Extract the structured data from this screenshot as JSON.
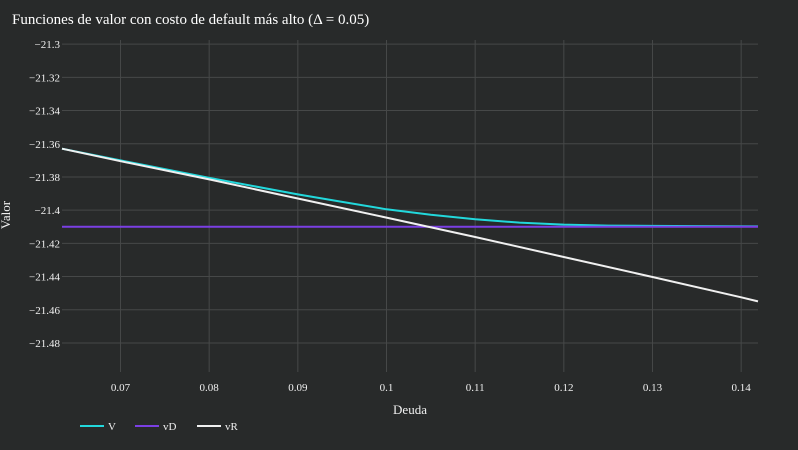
{
  "chart_data": {
    "type": "line",
    "title": "Funciones de valor con costo de default más alto (Δ = 0.05)",
    "xlabel": "Deuda",
    "ylabel": "Valor",
    "xlim": [
      0.0634,
      0.1419
    ],
    "ylim": [
      -21.4975,
      -21.2975
    ],
    "x_ticks": [
      0.07,
      0.08,
      0.09,
      0.1,
      0.11,
      0.12,
      0.13,
      0.14
    ],
    "x_tick_labels": [
      "0.07",
      "0.08",
      "0.09",
      "0.1",
      "0.11",
      "0.12",
      "0.13",
      "0.14"
    ],
    "y_ticks": [
      -21.3,
      -21.32,
      -21.34,
      -21.36,
      -21.38,
      -21.4,
      -21.42,
      -21.44,
      -21.46,
      -21.48
    ],
    "y_tick_labels": [
      "−21.3",
      "−21.32",
      "−21.34",
      "−21.36",
      "−21.38",
      "−21.4",
      "−21.42",
      "−21.44",
      "−21.46",
      "−21.48"
    ],
    "grid": true,
    "legend_position": "bottom-left",
    "background": "#282a2a",
    "grid_color": "#464848",
    "series": [
      {
        "name": "V",
        "color": "#22d8dc",
        "x": [
          0.0634,
          0.07,
          0.08,
          0.09,
          0.095,
          0.1,
          0.105,
          0.11,
          0.115,
          0.12,
          0.125,
          0.13,
          0.135,
          0.1419
        ],
        "y": [
          -21.363,
          -21.37,
          -21.3805,
          -21.3905,
          -21.395,
          -21.3995,
          -21.4028,
          -21.4055,
          -21.4075,
          -21.4087,
          -21.4093,
          -21.4095,
          -21.4096,
          -21.4098
        ]
      },
      {
        "name": "vD",
        "color": "#7b3fe4",
        "x": [
          0.0634,
          0.1419
        ],
        "y": [
          -21.41,
          -21.41
        ]
      },
      {
        "name": "vR",
        "color": "#f0f0f0",
        "x": [
          0.0634,
          0.07,
          0.08,
          0.09,
          0.1,
          0.11,
          0.12,
          0.13,
          0.14,
          0.1419
        ],
        "y": [
          -21.363,
          -21.3705,
          -21.3815,
          -21.393,
          -21.4045,
          -21.4162,
          -21.4282,
          -21.4403,
          -21.4525,
          -21.455
        ]
      }
    ]
  }
}
